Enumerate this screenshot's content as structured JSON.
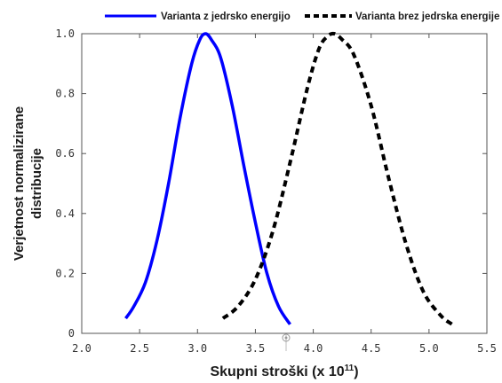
{
  "chart_data": {
    "type": "line",
    "xlabel_main": "Skupni stroški (x 10",
    "xlabel_exponent": "11",
    "xlabel_close": ")",
    "ylabel_line1": "Verjetnost normalizirane",
    "ylabel_line2": "distribucije",
    "xlim": [
      2.0,
      5.5
    ],
    "ylim": [
      0.0,
      1.0
    ],
    "x_ticks": [
      2.0,
      2.5,
      3.0,
      3.5,
      4.0,
      4.5,
      5.0,
      5.5
    ],
    "x_tick_labels": [
      "2.0",
      "2.5",
      "3.0",
      "3.5",
      "4.0",
      "4.5",
      "5.0",
      "5.5"
    ],
    "y_ticks": [
      0.0,
      0.2,
      0.4,
      0.6,
      0.8,
      1.0
    ],
    "y_tick_labels": [
      "0",
      "0.2",
      "0.4",
      "0.6",
      "0.8",
      "1.0"
    ],
    "grid": false,
    "legend_position": "top",
    "series": [
      {
        "name": "Varianta z jedrsko energijo",
        "color": "#0000ff",
        "style": "solid",
        "x": [
          2.38,
          2.45,
          2.55,
          2.65,
          2.75,
          2.85,
          2.95,
          3.02,
          3.07,
          3.12,
          3.2,
          3.3,
          3.4,
          3.5,
          3.6,
          3.7,
          3.8
        ],
        "y": [
          0.05,
          0.09,
          0.17,
          0.31,
          0.5,
          0.72,
          0.9,
          0.98,
          1.0,
          0.98,
          0.92,
          0.76,
          0.56,
          0.37,
          0.2,
          0.09,
          0.03
        ]
      },
      {
        "name": "Varianta brez jedrska energije",
        "color": "#000000",
        "style": "dashed",
        "x": [
          3.22,
          3.35,
          3.5,
          3.65,
          3.8,
          3.95,
          4.05,
          4.12,
          4.18,
          4.25,
          4.35,
          4.5,
          4.65,
          4.8,
          4.95,
          5.1,
          5.2
        ],
        "y": [
          0.05,
          0.09,
          0.18,
          0.34,
          0.57,
          0.82,
          0.95,
          0.99,
          1.0,
          0.98,
          0.93,
          0.76,
          0.52,
          0.3,
          0.14,
          0.06,
          0.03
        ]
      }
    ]
  }
}
